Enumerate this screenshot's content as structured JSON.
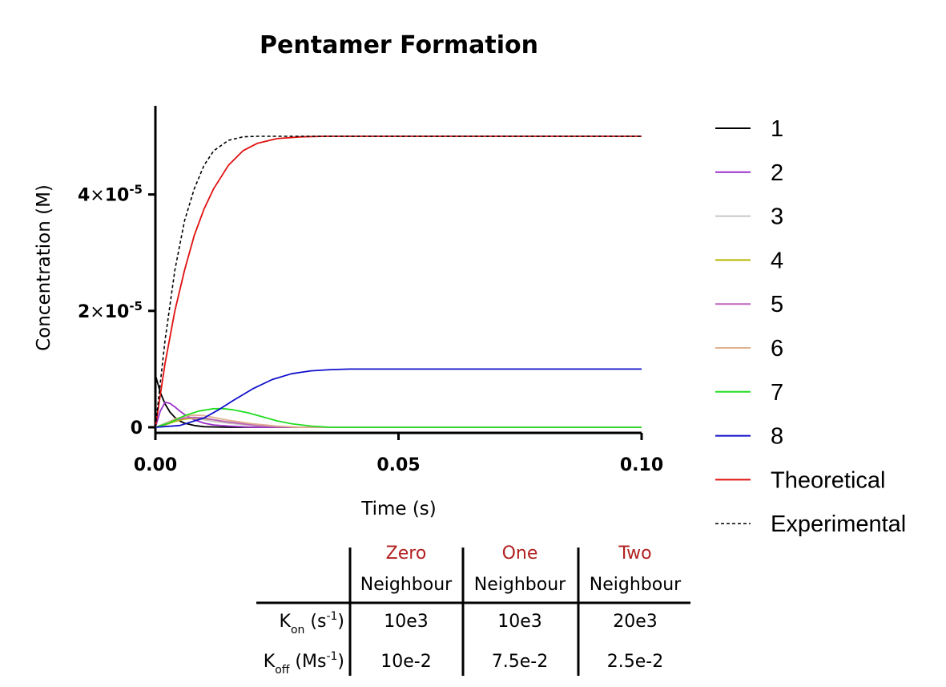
{
  "chart_data": {
    "type": "line",
    "title": "Pentamer Formation",
    "xlabel": "Time  (s)",
    "ylabel": "Concentration (M)",
    "xlim": [
      0,
      0.1
    ],
    "ylim": [
      0,
      5.5e-05
    ],
    "x_ticks": [
      "0.00",
      "0.05",
      "0.10"
    ],
    "y_ticks": [
      {
        "value": 0,
        "label": "0"
      },
      {
        "value": 2e-05,
        "mantissa": "2",
        "times": "×",
        "base": "10",
        "exp": "-5"
      },
      {
        "value": 4e-05,
        "mantissa": "4",
        "times": "×",
        "base": "10",
        "exp": "-5"
      }
    ],
    "grid": false,
    "legend_position": "right",
    "series": [
      {
        "name": "1",
        "color": "#000000",
        "dash": false,
        "x": [
          0,
          0.001,
          0.002,
          0.003,
          0.004,
          0.005,
          0.006,
          0.008,
          0.01,
          0.015,
          0.02,
          0.05,
          0.1
        ],
        "y": [
          9e-06,
          6e-06,
          4e-06,
          2.6e-06,
          1.7e-06,
          1.1e-06,
          7e-07,
          3e-07,
          1e-07,
          0,
          0,
          0,
          0
        ]
      },
      {
        "name": "2",
        "color": "#9b30c8",
        "dash": false,
        "x": [
          0,
          0.001,
          0.002,
          0.003,
          0.004,
          0.005,
          0.006,
          0.007,
          0.008,
          0.01,
          0.012,
          0.015,
          0.02,
          0.03,
          0.1
        ],
        "y": [
          0,
          2.8e-06,
          4.3e-06,
          4.1e-06,
          3.5e-06,
          2.8e-06,
          2.2e-06,
          1.7e-06,
          1.3e-06,
          7e-07,
          4e-07,
          2e-07,
          0,
          0,
          0
        ]
      },
      {
        "name": "3",
        "color": "#c8c8c8",
        "dash": false,
        "x": [
          0,
          0.002,
          0.004,
          0.006,
          0.008,
          0.01,
          0.012,
          0.015,
          0.02,
          0.025,
          0.03,
          0.1
        ],
        "y": [
          0,
          7e-07,
          1.4e-06,
          1.6e-06,
          1.5e-06,
          1.3e-06,
          1e-06,
          7e-07,
          3e-07,
          1e-07,
          0,
          0
        ]
      },
      {
        "name": "4",
        "color": "#b8b800",
        "dash": false,
        "x": [
          0,
          0.002,
          0.004,
          0.006,
          0.008,
          0.01,
          0.012,
          0.015,
          0.02,
          0.025,
          0.03,
          0.1
        ],
        "y": [
          0,
          4e-07,
          1e-06,
          1.4e-06,
          1.6e-06,
          1.5e-06,
          1.3e-06,
          9e-07,
          4e-07,
          1e-07,
          0,
          0
        ]
      },
      {
        "name": "5",
        "color": "#c060c0",
        "dash": false,
        "x": [
          0,
          0.002,
          0.004,
          0.006,
          0.008,
          0.01,
          0.012,
          0.015,
          0.02,
          0.025,
          0.03,
          0.1
        ],
        "y": [
          0,
          5e-07,
          1.2e-06,
          1.6e-06,
          1.7e-06,
          1.6e-06,
          1.3e-06,
          9e-07,
          4e-07,
          1e-07,
          0,
          0
        ]
      },
      {
        "name": "6",
        "color": "#e0b090",
        "dash": false,
        "x": [
          0,
          0.002,
          0.004,
          0.006,
          0.008,
          0.01,
          0.012,
          0.015,
          0.02,
          0.025,
          0.03,
          0.1
        ],
        "y": [
          0,
          6e-07,
          1.4e-06,
          1.9e-06,
          2.1e-06,
          2e-06,
          1.7e-06,
          1.2e-06,
          6e-07,
          2e-07,
          0,
          0
        ]
      },
      {
        "name": "7",
        "color": "#22dd22",
        "dash": false,
        "x": [
          0,
          0.003,
          0.006,
          0.009,
          0.012,
          0.014,
          0.016,
          0.019,
          0.022,
          0.025,
          0.028,
          0.032,
          0.036,
          0.1
        ],
        "y": [
          0,
          8e-07,
          2e-06,
          2.8e-06,
          3.2e-06,
          3.2e-06,
          3e-06,
          2.5e-06,
          1.8e-06,
          1.1e-06,
          6e-07,
          2e-07,
          0,
          0
        ]
      },
      {
        "name": "8",
        "color": "#1010cc",
        "dash": false,
        "x": [
          0,
          0.005,
          0.01,
          0.013,
          0.016,
          0.02,
          0.024,
          0.028,
          0.032,
          0.036,
          0.04,
          0.05,
          0.1
        ],
        "y": [
          0,
          3e-07,
          1.6e-06,
          3e-06,
          4.6e-06,
          6.6e-06,
          8.2e-06,
          9.2e-06,
          9.7e-06,
          9.9e-06,
          1e-05,
          1e-05,
          1e-05
        ]
      },
      {
        "name": "Theoretical",
        "color": "#e01010",
        "dash": false,
        "x": [
          0,
          0.002,
          0.004,
          0.006,
          0.008,
          0.01,
          0.012,
          0.015,
          0.018,
          0.021,
          0.025,
          0.03,
          0.035,
          0.04,
          0.05,
          0.1
        ],
        "y": [
          0,
          1.1e-05,
          2e-05,
          2.7e-05,
          3.3e-05,
          3.75e-05,
          4.1e-05,
          4.5e-05,
          4.75e-05,
          4.88e-05,
          4.96e-05,
          4.99e-05,
          5e-05,
          5e-05,
          5e-05,
          5e-05
        ]
      },
      {
        "name": "Experimental",
        "color": "#000000",
        "dash": true,
        "x": [
          0,
          0.002,
          0.004,
          0.006,
          0.008,
          0.01,
          0.012,
          0.015,
          0.018,
          0.021,
          0.025,
          0.03,
          0.04,
          0.1
        ],
        "y": [
          0,
          1.5e-05,
          2.7e-05,
          3.55e-05,
          4.1e-05,
          4.5e-05,
          4.75e-05,
          4.93e-05,
          4.99e-05,
          5e-05,
          5e-05,
          5e-05,
          5e-05,
          5e-05
        ]
      }
    ]
  },
  "table": {
    "columns": [
      {
        "top": "Zero",
        "bottom": "Neighbour"
      },
      {
        "top": "One",
        "bottom": "Neighbour"
      },
      {
        "top": "Two",
        "bottom": "Neighbour"
      }
    ],
    "rows": [
      {
        "sym": "K",
        "sub": "on",
        "unit_pre": "(s",
        "sup": "-1",
        "unit_post": ")",
        "values": [
          "10e3",
          "10e3",
          "20e3"
        ]
      },
      {
        "sym": "K",
        "sub": "off",
        "unit_pre": "(Ms",
        "sup": "-1",
        "unit_post": ")",
        "values": [
          "10e-2",
          "7.5e-2",
          "2.5e-2"
        ]
      }
    ]
  }
}
